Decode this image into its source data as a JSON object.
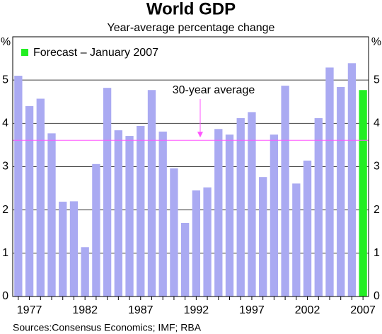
{
  "chart_data": {
    "type": "bar",
    "title": "World GDP",
    "subtitle": "Year-average percentage change",
    "ylabel": "%",
    "source": "Sources:Consensus Economics; IMF; RBA",
    "categories": [
      null,
      "1977",
      null,
      null,
      null,
      null,
      "1982",
      null,
      null,
      null,
      null,
      "1987",
      null,
      null,
      null,
      null,
      "1992",
      null,
      null,
      null,
      null,
      "1997",
      null,
      null,
      null,
      null,
      "2002",
      null,
      null,
      null,
      null,
      "2007"
    ],
    "series": [
      {
        "color": "#aaaaf2",
        "values": [
          5.1,
          4.4,
          4.57,
          3.77,
          2.19,
          2.2,
          1.14,
          3.06,
          4.82,
          3.84,
          3.71,
          3.94,
          4.77,
          3.81,
          2.96,
          1.7,
          2.45,
          2.52,
          3.87,
          3.74,
          4.12,
          4.26,
          2.76,
          3.74,
          4.87,
          2.61,
          3.14,
          4.12,
          5.29,
          4.84,
          5.39,
          null
        ]
      },
      {
        "name": "Forecast – January 2007",
        "color": "#22ee22",
        "values": [
          null,
          null,
          null,
          null,
          null,
          null,
          null,
          null,
          null,
          null,
          null,
          null,
          null,
          null,
          null,
          null,
          null,
          null,
          null,
          null,
          null,
          null,
          null,
          null,
          null,
          null,
          null,
          null,
          null,
          null,
          null,
          4.77
        ]
      }
    ],
    "reference_line": {
      "label": "30-year average",
      "value": 3.61,
      "color": "#ff55ff"
    },
    "ylim": [
      0,
      6
    ],
    "yticks": [
      0,
      1,
      2,
      3,
      4,
      5
    ],
    "grid": true
  }
}
